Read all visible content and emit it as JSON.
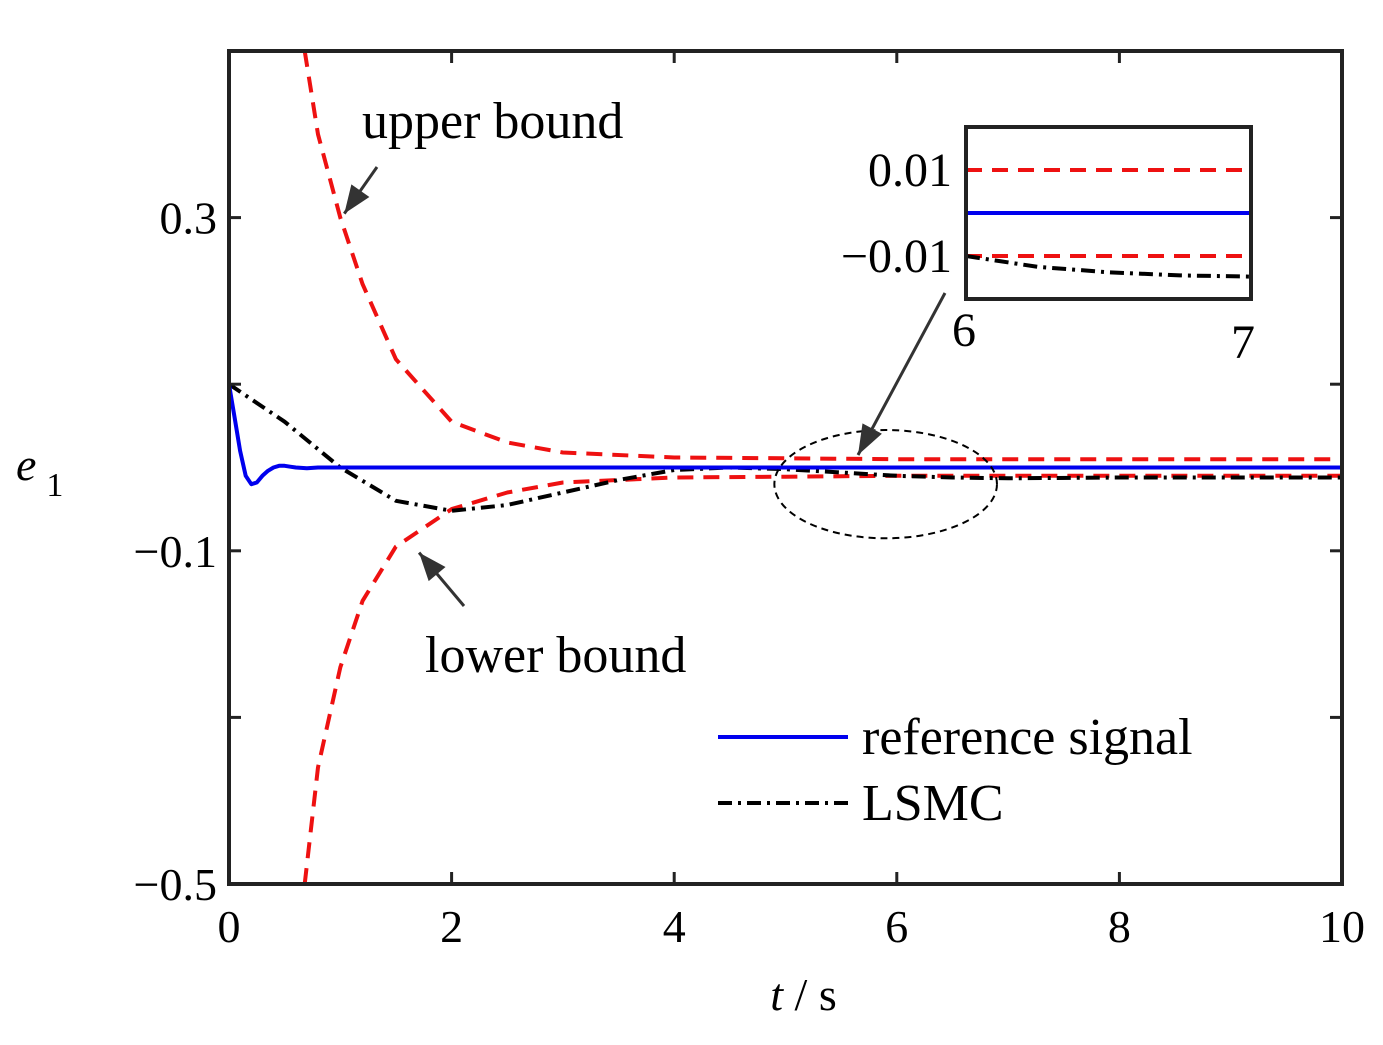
{
  "chart_data": {
    "type": "line",
    "xlabel": {
      "var": "t",
      "unit": " / s"
    },
    "ylabel": {
      "var": "e",
      "sub": "1"
    },
    "xlim": [
      0,
      10
    ],
    "ylim": [
      -0.5,
      0.5
    ],
    "xticks": [
      0,
      2,
      4,
      6,
      8,
      10
    ],
    "xtick_labels": [
      "0",
      "2",
      "4",
      "6",
      "8",
      "10"
    ],
    "yticks": [
      -0.5,
      -0.3,
      -0.1,
      0.1,
      0.3
    ],
    "ytick_labels": [
      "−0.5",
      "",
      "−0.1",
      "",
      "0.3"
    ],
    "grid": false,
    "legend_position": "bottom-right",
    "series": [
      {
        "name": "reference signal",
        "color": "#0000ee",
        "style": "solid",
        "x": [
          0,
          0.05,
          0.1,
          0.15,
          0.2,
          0.25,
          0.3,
          0.35,
          0.4,
          0.45,
          0.5,
          0.55,
          0.6,
          0.7,
          0.8,
          1.0,
          1.5,
          2,
          3,
          4,
          5,
          6,
          7,
          8,
          9,
          10
        ],
        "y": [
          0.1,
          0.06,
          0.02,
          -0.01,
          -0.02,
          -0.018,
          -0.01,
          -0.004,
          0.0,
          0.002,
          0.002,
          0.001,
          0.0,
          -0.001,
          0.0,
          0.0,
          0.0,
          0.0,
          0.0,
          0.0,
          0.0,
          0.0,
          0.0,
          0.0,
          0.0,
          0.0
        ]
      },
      {
        "name": "LSMC",
        "color": "#000000",
        "style": "dashdot",
        "x": [
          0,
          0.5,
          1.0,
          1.5,
          2.0,
          2.5,
          3.0,
          3.5,
          4.0,
          4.5,
          5.0,
          5.5,
          6.0,
          6.5,
          7.0,
          8.0,
          9.0,
          10.0
        ],
        "y": [
          0.1,
          0.055,
          0.0,
          -0.04,
          -0.052,
          -0.045,
          -0.03,
          -0.015,
          -0.003,
          0.0,
          -0.002,
          -0.006,
          -0.01,
          -0.012,
          -0.013,
          -0.012,
          -0.012,
          -0.012
        ]
      },
      {
        "name": "upper bound",
        "color": "#ee1111",
        "style": "dashed",
        "x": [
          0.68,
          0.8,
          1.0,
          1.2,
          1.5,
          2.0,
          2.5,
          3.0,
          4.0,
          5.0,
          6.0,
          7.0,
          8.0,
          10.0
        ],
        "y": [
          0.5,
          0.4,
          0.3,
          0.22,
          0.13,
          0.055,
          0.03,
          0.018,
          0.012,
          0.011,
          0.01,
          0.01,
          0.01,
          0.01
        ]
      },
      {
        "name": "lower bound",
        "color": "#ee1111",
        "style": "dashed",
        "x": [
          0.68,
          0.8,
          1.0,
          1.2,
          1.5,
          2.0,
          2.5,
          3.0,
          4.0,
          5.0,
          6.0,
          7.0,
          8.0,
          10.0
        ],
        "y": [
          -0.5,
          -0.36,
          -0.24,
          -0.16,
          -0.095,
          -0.05,
          -0.03,
          -0.018,
          -0.012,
          -0.011,
          -0.01,
          -0.01,
          -0.01,
          -0.01
        ]
      }
    ],
    "legend": [
      {
        "label": "reference signal",
        "series_index": 0
      },
      {
        "label": "LSMC",
        "series_index": 1
      }
    ],
    "annotations": [
      {
        "text": "upper bound",
        "target": [
          1.0,
          0.3
        ]
      },
      {
        "text": "lower bound",
        "target": [
          1.6,
          -0.095
        ]
      }
    ],
    "zoom_region": {
      "center": [
        5.9,
        -0.02
      ],
      "rx": 1.0,
      "ry": 0.065
    },
    "inset": {
      "xlim": [
        6,
        7
      ],
      "ylim": [
        -0.02,
        0.02
      ],
      "xtick_labels": [
        "6",
        "7"
      ],
      "ytick_labels": [
        "0.01",
        "−0.01"
      ],
      "series": [
        {
          "color": "#ee1111",
          "style": "dashed",
          "x": [
            6,
            7
          ],
          "y": [
            0.01,
            0.01
          ]
        },
        {
          "color": "#0000ee",
          "style": "solid",
          "x": [
            6,
            7
          ],
          "y": [
            0.0,
            0.0
          ]
        },
        {
          "color": "#ee1111",
          "style": "dashed",
          "x": [
            6,
            7
          ],
          "y": [
            -0.01,
            -0.01
          ]
        },
        {
          "color": "#000000",
          "style": "dashdot",
          "x": [
            6,
            6.25,
            6.5,
            6.75,
            7
          ],
          "y": [
            -0.01,
            -0.0125,
            -0.0138,
            -0.0145,
            -0.0148
          ]
        }
      ]
    }
  }
}
